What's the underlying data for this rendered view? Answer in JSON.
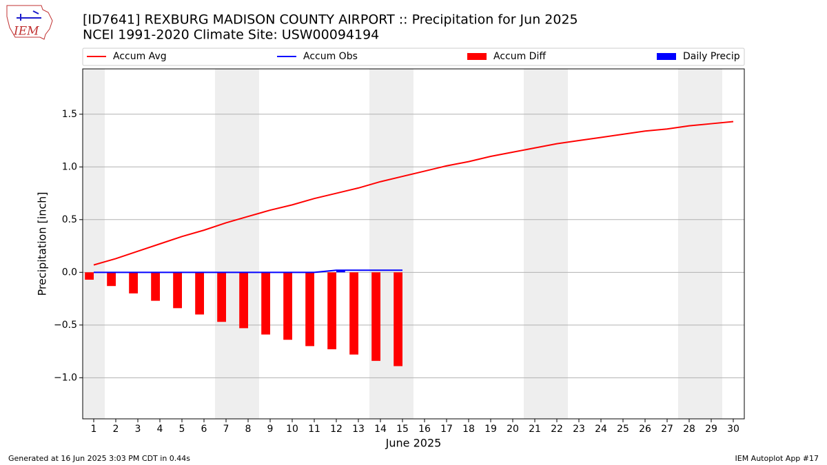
{
  "logo_text": "IEM",
  "footer": {
    "left": "Generated at 16 Jun 2025 3:03 PM CDT in 0.44s",
    "right": "IEM Autoplot App #17"
  },
  "chart_data": {
    "type": "line",
    "title": "[ID7641] REXBURG MADISON COUNTY AIRPORT :: Precipitation for Jun 2025",
    "subtitle": "NCEI 1991-2020 Climate Site: USW00094194",
    "x_label": "June 2025",
    "y_label": "Precipitation [inch]",
    "x": [
      1,
      2,
      3,
      4,
      5,
      6,
      7,
      8,
      9,
      10,
      11,
      12,
      13,
      14,
      15,
      16,
      17,
      18,
      19,
      20,
      21,
      22,
      23,
      24,
      25,
      26,
      27,
      28,
      29,
      30
    ],
    "xlim": [
      0.5,
      30.5
    ],
    "xticks": [
      1,
      2,
      3,
      4,
      5,
      6,
      7,
      8,
      9,
      10,
      11,
      12,
      13,
      14,
      15,
      16,
      17,
      18,
      19,
      20,
      21,
      22,
      23,
      24,
      25,
      26,
      27,
      28,
      29,
      30
    ],
    "ylim": [
      -1.39,
      1.93
    ],
    "yticks": [
      {
        "value": -1.0,
        "label": "−1.0"
      },
      {
        "value": -0.5,
        "label": "−0.5"
      },
      {
        "value": 0.0,
        "label": "0.0"
      },
      0.5,
      {
        "value": 1.0,
        "label": "1.0"
      },
      1.5
    ],
    "grid": true,
    "shaded_days": [
      1,
      7,
      8,
      14,
      15,
      21,
      22,
      28,
      29
    ],
    "series": [
      {
        "name": "Accum Avg",
        "kind": "line",
        "color": "#ff0000",
        "values": [
          0.07,
          0.13,
          0.2,
          0.27,
          0.34,
          0.4,
          0.47,
          0.53,
          0.59,
          0.64,
          0.7,
          0.75,
          0.8,
          0.86,
          0.91,
          0.96,
          1.01,
          1.05,
          1.1,
          1.14,
          1.18,
          1.22,
          1.25,
          1.28,
          1.31,
          1.34,
          1.36,
          1.39,
          1.41,
          1.43
        ]
      },
      {
        "name": "Accum Obs",
        "kind": "line",
        "color": "#0000ff",
        "values": [
          0,
          0,
          0,
          0,
          0,
          0,
          0,
          0,
          0,
          0,
          0,
          0.02,
          0.02,
          0.02,
          0.02,
          null,
          null,
          null,
          null,
          null,
          null,
          null,
          null,
          null,
          null,
          null,
          null,
          null,
          null,
          null
        ]
      },
      {
        "name": "Accum Diff",
        "kind": "bar",
        "side": "left",
        "color": "#ff0000",
        "values": [
          -0.07,
          -0.13,
          -0.2,
          -0.27,
          -0.34,
          -0.4,
          -0.47,
          -0.53,
          -0.59,
          -0.64,
          -0.7,
          -0.73,
          -0.78,
          -0.84,
          -0.89,
          null,
          null,
          null,
          null,
          null,
          null,
          null,
          null,
          null,
          null,
          null,
          null,
          null,
          null,
          null
        ]
      },
      {
        "name": "Daily Precip",
        "kind": "bar",
        "side": "right",
        "color": "#0000ff",
        "values": [
          0,
          0,
          0,
          0,
          0,
          0,
          0,
          0,
          0,
          0,
          0,
          0.02,
          0,
          0,
          0,
          null,
          null,
          null,
          null,
          null,
          null,
          null,
          null,
          null,
          null,
          null,
          null,
          null,
          null,
          null
        ]
      }
    ]
  }
}
